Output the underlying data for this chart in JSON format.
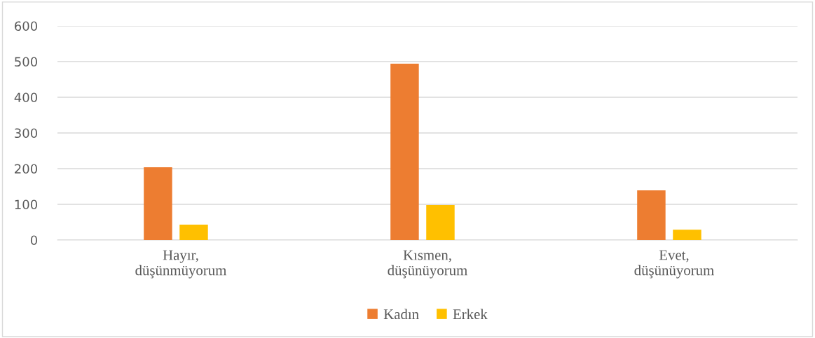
{
  "chart_data": {
    "type": "bar",
    "categories": [
      "Hayır,\ndüşünmüyorum",
      "Kısmen,\ndüşünüyorum",
      "Evet,\ndüşünüyorum"
    ],
    "series": [
      {
        "name": "Kadın",
        "color": "#ed7d31",
        "values": [
          204,
          494,
          139
        ]
      },
      {
        "name": "Erkek",
        "color": "#ffc000",
        "values": [
          43,
          98,
          29
        ]
      }
    ],
    "ylim": [
      0,
      600
    ],
    "yticks": [
      0,
      100,
      200,
      300,
      400,
      500,
      600
    ],
    "grid": "y",
    "legend": "bottom"
  }
}
